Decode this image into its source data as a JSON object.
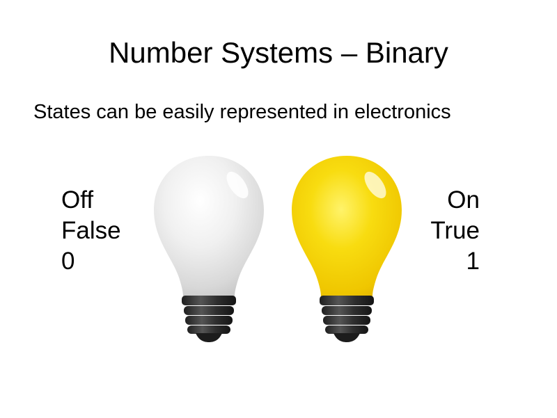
{
  "slide": {
    "title": "Number Systems – Binary",
    "subtitle": "States can be easily represented in electronics"
  },
  "off_state": {
    "labels": [
      "Off",
      "False",
      "0"
    ],
    "bulb_color": "#e6e6e6"
  },
  "on_state": {
    "labels": [
      "On",
      "True",
      "1"
    ],
    "bulb_color": "#f2cf00"
  },
  "bulb": {
    "base_color": "#2f2f2f"
  }
}
